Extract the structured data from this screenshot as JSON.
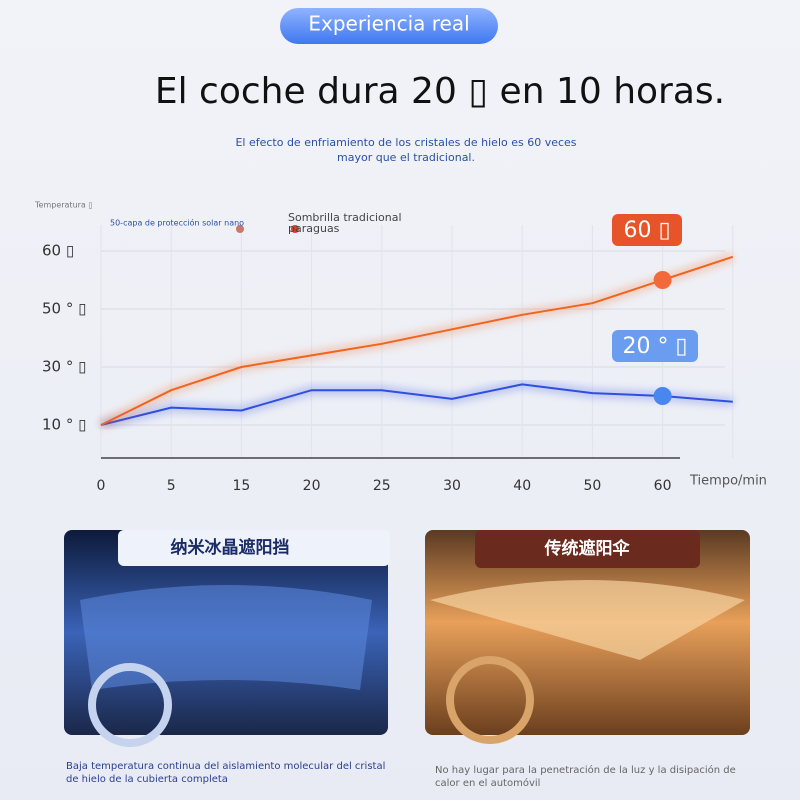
{
  "header": {
    "badge": "Experiencia real",
    "title": "El coche dura 20 ▯ en 10 horas.",
    "subtitle": [
      "El efecto de enfriamiento de los cristales de hielo es 60 veces",
      "mayor que el tradicional."
    ]
  },
  "chart_data": {
    "type": "line",
    "y_label": "Temperatura ▯",
    "x_label": "Tiempo/min",
    "categories": [
      "0",
      "5",
      "15",
      "20",
      "25",
      "30",
      "40",
      "50",
      "60",
      null
    ],
    "series": [
      {
        "name": "50-capa de protección solar nano",
        "color": "#2f4fe0",
        "values": [
          10,
          16,
          15,
          22,
          22,
          19,
          24,
          21,
          20,
          18
        ]
      },
      {
        "name": "Sombrilla tradicional paraguas",
        "color": "#f0641e",
        "values": [
          10,
          22,
          30,
          34,
          38,
          43,
          48,
          51,
          55,
          59
        ]
      }
    ],
    "yticks": [
      {
        "value": 10,
        "label": "10 ° ▯"
      },
      {
        "value": 30,
        "label": "30 ° ▯"
      },
      {
        "value": 50,
        "label": "50 ° ▯"
      },
      {
        "value": 60,
        "label": "60 ▯"
      }
    ],
    "grid": true,
    "annotations": [
      "60 ▯",
      "20 ° ▯"
    ]
  },
  "panels": [
    {
      "title": "纳米冰晶遮阳挡",
      "caption": "Baja temperatura continua del aislamiento molecular del cristal de hielo de la cubierta completa"
    },
    {
      "title": "传统遮阳伞",
      "caption": "No hay lugar para la penetración de la luz y la disipación de calor en el automóvil"
    }
  ]
}
